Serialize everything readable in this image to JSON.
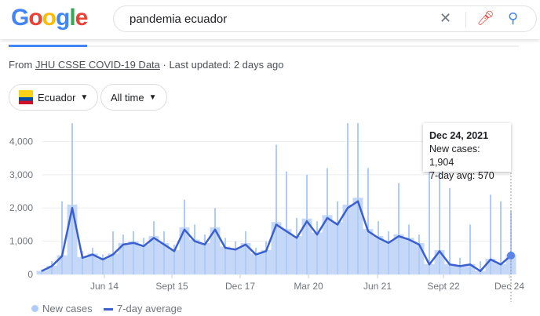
{
  "search": {
    "logo": "Google",
    "query": "pandemia ecuador"
  },
  "source": {
    "prefix": "From ",
    "link": "JHU CSSE COVID-19 Data",
    "suffix": " · Last updated: 2 days ago"
  },
  "filters": {
    "country": "Ecuador",
    "range": "All time"
  },
  "legend": {
    "new_cases": "New cases",
    "avg": "7-day average"
  },
  "tooltip": {
    "date": "Dec 24, 2021",
    "new_cases": "New cases: 1,904",
    "avg": "7-day avg: 570"
  },
  "colors": {
    "bars": "#aecbfa",
    "line": "#3b5fcf",
    "accent": "#4285f4"
  },
  "chart_data": {
    "type": "bar+line",
    "ylim": [
      0,
      4600
    ],
    "y_ticks": [
      "0",
      "1,000",
      "2,000",
      "3,000",
      "4,000"
    ],
    "x_ticks": [
      "Jun 14",
      "Sept 15",
      "Dec 17",
      "Mar 20",
      "Jun 21",
      "Sept 22",
      "Dec 24"
    ],
    "series": [
      {
        "name": "New cases",
        "values": [
          150,
          400,
          2200,
          4550,
          700,
          800,
          600,
          1300,
          1200,
          1300,
          1100,
          1600,
          1300,
          900,
          2250,
          1500,
          1200,
          2000,
          1100,
          1000,
          1300,
          800,
          1000,
          3900,
          3100,
          1700,
          3000,
          1600,
          3200,
          2200,
          4550,
          4550,
          3200,
          1600,
          1300,
          2750,
          1500,
          1200,
          4550,
          3600,
          2600,
          500,
          1500,
          400,
          2400,
          2200,
          1904
        ]
      },
      {
        "name": "7-day average",
        "values": [
          100,
          250,
          550,
          2000,
          500,
          600,
          450,
          600,
          900,
          950,
          850,
          1100,
          900,
          700,
          1350,
          1000,
          900,
          1350,
          800,
          750,
          900,
          600,
          700,
          1500,
          1300,
          1100,
          1600,
          1200,
          1700,
          1500,
          2000,
          2200,
          1300,
          1100,
          950,
          1150,
          1050,
          900,
          300,
          700,
          300,
          250,
          300,
          100,
          450,
          300,
          570
        ]
      }
    ]
  }
}
